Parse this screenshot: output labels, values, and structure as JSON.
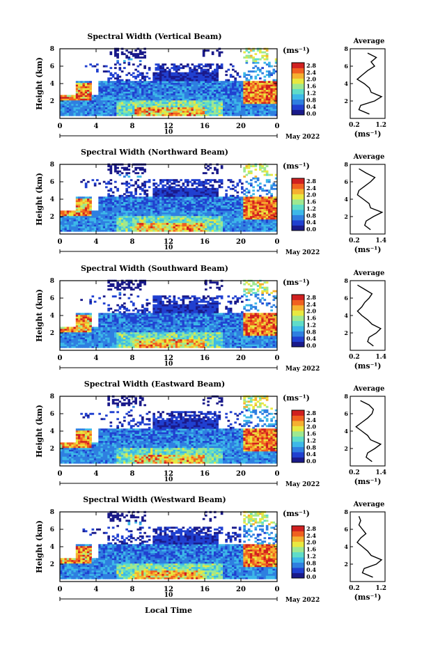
{
  "figure": {
    "x_axis_label": "Local Time",
    "date_label": "May 2022",
    "day_label": "10",
    "unit_label": "(ms⁻¹)",
    "average_title": "Average",
    "colorbar_ticks": [
      "2.8",
      "2.4",
      "2.0",
      "1.6",
      "1.2",
      "0.8",
      "0.4",
      "0.0"
    ],
    "colors": {
      "colormap": [
        "#1a1a8a",
        "#2040d0",
        "#2f7fe0",
        "#3db8e8",
        "#5fdcc8",
        "#9ee890",
        "#e8e840",
        "#f5b030",
        "#f06020",
        "#d02020"
      ],
      "background": "#ffffff"
    }
  },
  "chart_data": [
    {
      "type": "heatmap",
      "title": "Spectral Width (Vertical Beam)",
      "ylabel": "Height (km)",
      "xlim": [
        0,
        24
      ],
      "ylim": [
        0,
        8
      ],
      "x_ticks": [
        "0",
        "4",
        "8",
        "12",
        "16",
        "20",
        "0"
      ],
      "y_ticks": [
        "8",
        "6",
        "4",
        "2"
      ],
      "colorbar_range": [
        0.0,
        2.8
      ],
      "profile": {
        "xlim": [
          0.2,
          1.2
        ],
        "x_ticks": [
          "0.2",
          "1.2"
        ],
        "y_ticks": [
          "8",
          "6",
          "4",
          "2"
        ],
        "height_km": [
          0.5,
          1.0,
          1.5,
          2.0,
          2.5,
          3.0,
          3.5,
          4.0,
          4.5,
          5.0,
          5.5,
          6.0,
          6.5,
          7.0,
          7.5
        ],
        "values": [
          0.75,
          0.45,
          0.5,
          0.9,
          1.1,
          0.8,
          0.75,
          0.6,
          0.4,
          0.55,
          0.7,
          0.9,
          0.8,
          0.95,
          0.7
        ]
      }
    },
    {
      "type": "heatmap",
      "title": "Spectral Width (Northward Beam)",
      "ylabel": "Height (km)",
      "xlim": [
        0,
        24
      ],
      "ylim": [
        0,
        8
      ],
      "x_ticks": [
        "0",
        "4",
        "8",
        "12",
        "16",
        "20",
        "0"
      ],
      "y_ticks": [
        "8",
        "6",
        "4",
        "2"
      ],
      "colorbar_range": [
        0.0,
        2.8
      ],
      "profile": {
        "xlim": [
          0.2,
          1.4
        ],
        "x_ticks": [
          "0.2",
          "1.4"
        ],
        "y_ticks": [
          "8",
          "6",
          "4",
          "2"
        ],
        "height_km": [
          0.5,
          1.0,
          1.5,
          2.0,
          2.5,
          3.0,
          3.5,
          4.0,
          4.5,
          5.0,
          5.5,
          6.0,
          6.5,
          7.0,
          7.5
        ],
        "values": [
          0.9,
          0.7,
          0.75,
          1.0,
          1.3,
          0.9,
          0.85,
          0.65,
          0.45,
          0.5,
          0.7,
          0.9,
          1.05,
          0.75,
          0.5
        ]
      }
    },
    {
      "type": "heatmap",
      "title": "Spectral Width (Southward Beam)",
      "ylabel": "Height (km)",
      "xlim": [
        0,
        24
      ],
      "ylim": [
        0,
        8
      ],
      "x_ticks": [
        "0",
        "4",
        "8",
        "12",
        "16",
        "20",
        "0"
      ],
      "y_ticks": [
        "8",
        "6",
        "4",
        "2"
      ],
      "colorbar_range": [
        0.0,
        2.8
      ],
      "profile": {
        "xlim": [
          0.2,
          1.4
        ],
        "x_ticks": [
          "0.2",
          "1.4"
        ],
        "y_ticks": [
          "8",
          "6",
          "4",
          "2"
        ],
        "height_km": [
          0.5,
          1.0,
          1.5,
          2.0,
          2.5,
          3.0,
          3.5,
          4.0,
          4.5,
          5.0,
          5.5,
          6.0,
          6.5,
          7.0,
          7.5
        ],
        "values": [
          1.0,
          0.8,
          0.85,
          1.1,
          1.25,
          0.95,
          0.8,
          0.6,
          0.45,
          0.6,
          0.7,
          0.85,
          0.95,
          0.7,
          0.45
        ]
      }
    },
    {
      "type": "heatmap",
      "title": "Spectral Width (Eastward Beam)",
      "ylabel": "Height (km)",
      "xlim": [
        0,
        24
      ],
      "ylim": [
        0,
        8
      ],
      "x_ticks": [
        "0",
        "4",
        "8",
        "12",
        "16",
        "20",
        "0"
      ],
      "y_ticks": [
        "8",
        "6",
        "4",
        "2"
      ],
      "colorbar_range": [
        0.0,
        2.8
      ],
      "profile": {
        "xlim": [
          0.2,
          1.4
        ],
        "x_ticks": [
          "0.2",
          "1.4"
        ],
        "y_ticks": [
          "8",
          "6",
          "4",
          "2"
        ],
        "height_km": [
          0.5,
          1.0,
          1.5,
          2.0,
          2.5,
          3.0,
          3.5,
          4.0,
          4.5,
          5.0,
          5.5,
          6.0,
          6.5,
          7.0,
          7.5
        ],
        "values": [
          0.95,
          0.75,
          0.8,
          1.05,
          1.25,
          0.9,
          0.8,
          0.6,
          0.4,
          0.6,
          0.8,
          0.95,
          1.0,
          0.85,
          0.55
        ]
      }
    },
    {
      "type": "heatmap",
      "title": "Spectral Width (Westward Beam)",
      "ylabel": "Height (km)",
      "xlim": [
        0,
        24
      ],
      "ylim": [
        0,
        8
      ],
      "x_ticks": [
        "0",
        "4",
        "8",
        "12",
        "16",
        "20",
        "0"
      ],
      "y_ticks": [
        "8",
        "6",
        "4",
        "2"
      ],
      "colorbar_range": [
        0.0,
        2.8
      ],
      "profile": {
        "xlim": [
          0.2,
          1.2
        ],
        "x_ticks": [
          "0.2",
          "1.2"
        ],
        "y_ticks": [
          "8",
          "6",
          "4",
          "2"
        ],
        "height_km": [
          0.5,
          1.0,
          1.5,
          2.0,
          2.5,
          3.0,
          3.5,
          4.0,
          4.5,
          5.0,
          5.5,
          6.0,
          6.5,
          7.0,
          7.5
        ],
        "values": [
          0.85,
          0.55,
          0.6,
          0.95,
          1.1,
          0.8,
          0.7,
          0.55,
          0.4,
          0.5,
          0.65,
          0.55,
          0.45,
          0.5,
          0.45
        ]
      }
    }
  ]
}
